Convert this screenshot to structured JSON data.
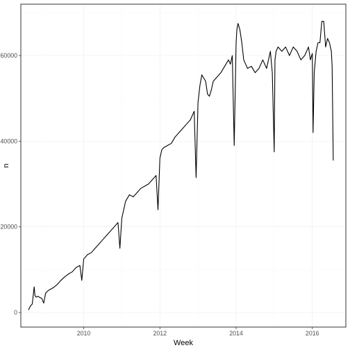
{
  "chart_data": {
    "type": "line",
    "xlabel": "Week",
    "ylabel": "n",
    "xlim": [
      2008.35,
      2016.88
    ],
    "ylim": [
      -3400,
      72000
    ],
    "x_ticks": [
      2010,
      2012,
      2014,
      2016
    ],
    "y_ticks": [
      0,
      20000,
      40000,
      60000
    ],
    "x_tick_labels": [
      "2010",
      "2012",
      "2014",
      "2016"
    ],
    "y_tick_labels": [
      "0",
      "20000",
      "40000",
      "60000"
    ],
    "grid": true,
    "legend": "none",
    "line_color": "#000000",
    "series": [
      {
        "x": [
          2008.55,
          2008.6,
          2008.65,
          2008.7,
          2008.72,
          2008.75,
          2008.8,
          2008.85,
          2008.9,
          2008.95,
          2009.0,
          2009.05,
          2009.1,
          2009.2,
          2009.3,
          2009.4,
          2009.5,
          2009.6,
          2009.7,
          2009.8,
          2009.9,
          2009.95,
          2010.0,
          2010.1,
          2010.2,
          2010.3,
          2010.4,
          2010.5,
          2010.6,
          2010.7,
          2010.8,
          2010.9,
          2010.95,
          2011.0,
          2011.05,
          2011.1,
          2011.2,
          2011.3,
          2011.4,
          2011.5,
          2011.6,
          2011.7,
          2011.8,
          2011.9,
          2011.95,
          2012.0,
          2012.05,
          2012.1,
          2012.2,
          2012.3,
          2012.4,
          2012.5,
          2012.6,
          2012.7,
          2012.8,
          2012.9,
          2012.95,
          2013.0,
          2013.05,
          2013.1,
          2013.2,
          2013.25,
          2013.3,
          2013.35,
          2013.4,
          2013.5,
          2013.6,
          2013.7,
          2013.8,
          2013.85,
          2013.9,
          2013.95,
          2014.0,
          2014.02,
          2014.05,
          2014.1,
          2014.15,
          2014.2,
          2014.3,
          2014.4,
          2014.5,
          2014.6,
          2014.7,
          2014.8,
          2014.9,
          2014.95,
          2015.0,
          2015.02,
          2015.05,
          2015.1,
          2015.2,
          2015.3,
          2015.4,
          2015.5,
          2015.6,
          2015.7,
          2015.8,
          2015.9,
          2015.95,
          2016.0,
          2016.02,
          2016.05,
          2016.1,
          2016.15,
          2016.2,
          2016.25,
          2016.3,
          2016.35,
          2016.4,
          2016.45,
          2016.5,
          2016.52,
          2016.55
        ],
        "y": [
          600,
          1500,
          2000,
          6000,
          4000,
          3600,
          3800,
          3500,
          3300,
          2200,
          4500,
          5000,
          5300,
          5800,
          6500,
          7500,
          8300,
          9000,
          9500,
          10500,
          11000,
          7500,
          12500,
          13500,
          14000,
          15000,
          16000,
          17000,
          18000,
          19000,
          20000,
          21000,
          15000,
          22000,
          24000,
          26000,
          27500,
          27000,
          28000,
          29000,
          29500,
          30000,
          31000,
          32000,
          24000,
          36000,
          38000,
          38500,
          39000,
          39500,
          41000,
          42000,
          43000,
          44000,
          45000,
          47000,
          31500,
          49000,
          53000,
          55500,
          54000,
          51000,
          50500,
          52000,
          54000,
          55000,
          56000,
          57500,
          59000,
          58000,
          60000,
          39000,
          63000,
          66000,
          67500,
          66000,
          63000,
          59000,
          57000,
          57500,
          56000,
          57000,
          59000,
          57000,
          61000,
          56000,
          37500,
          59000,
          61000,
          62000,
          61000,
          62000,
          60000,
          62000,
          61000,
          59000,
          60000,
          62000,
          59000,
          60500,
          42000,
          56000,
          61000,
          63000,
          63000,
          68000,
          68000,
          62000,
          64000,
          63000,
          61000,
          57500,
          35500
        ]
      }
    ]
  }
}
